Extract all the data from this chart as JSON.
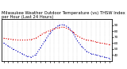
{
  "title": "Milwaukee Weather Outdoor Temperature (vs) THSW Index per Hour (Last 24 Hours)",
  "bg_color": "#ffffff",
  "grid_color": "#888888",
  "temp_color": "#dd0000",
  "thsw_color": "#0000bb",
  "hours": [
    0,
    1,
    2,
    3,
    4,
    5,
    6,
    7,
    8,
    9,
    10,
    11,
    12,
    13,
    14,
    15,
    16,
    17,
    18,
    19,
    20,
    21,
    22,
    23
  ],
  "x_labels": [
    "1",
    "",
    "",
    "2",
    "",
    "",
    "3",
    "",
    "",
    "4",
    "",
    "",
    "5",
    "",
    "",
    "6",
    "",
    "",
    "7",
    "",
    "",
    "8",
    "",
    ""
  ],
  "temp": [
    68,
    67,
    66,
    65,
    65,
    65,
    66,
    68,
    73,
    78,
    81,
    84,
    86,
    87,
    84,
    79,
    72,
    68,
    65,
    64,
    62,
    60,
    59,
    57
  ],
  "thsw": [
    60,
    55,
    50,
    46,
    42,
    38,
    36,
    40,
    52,
    64,
    76,
    84,
    90,
    91,
    87,
    78,
    64,
    54,
    46,
    42,
    40,
    38,
    36,
    34
  ],
  "ylim": [
    30,
    100
  ],
  "yticks": [
    40,
    50,
    60,
    70,
    80,
    90
  ],
  "ytick_labels": [
    "40",
    "50",
    "60",
    "70",
    "80",
    "90"
  ],
  "title_fontsize": 3.8,
  "tick_fontsize": 3.0,
  "line_width": 0.8,
  "marker_size": 1.2,
  "figsize": [
    1.6,
    0.87
  ],
  "dpi": 100
}
